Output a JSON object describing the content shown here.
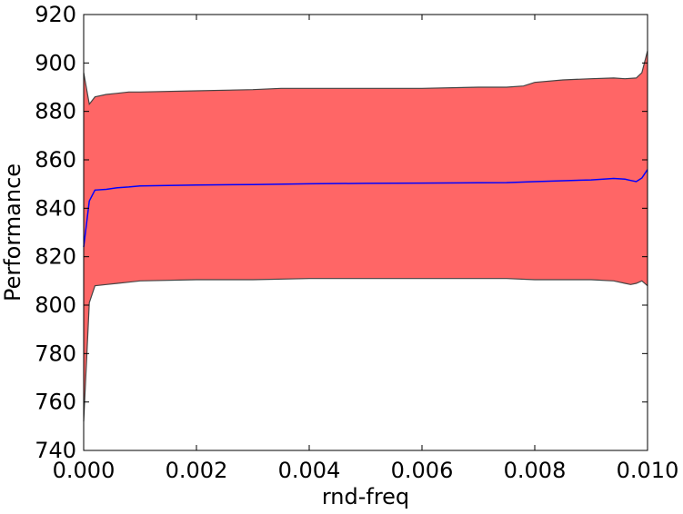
{
  "chart_data": {
    "type": "area",
    "title": "",
    "xlabel": "rnd-freq",
    "ylabel": "Performance",
    "xlim": [
      0.0,
      0.01
    ],
    "ylim": [
      740,
      920
    ],
    "xticks": [
      "0.000",
      "0.002",
      "0.004",
      "0.006",
      "0.008",
      "0.010"
    ],
    "yticks": [
      "740",
      "760",
      "780",
      "800",
      "820",
      "840",
      "860",
      "880",
      "900",
      "920"
    ],
    "grid": false,
    "legend": "none",
    "colors": {
      "band": "#ff6666",
      "band_edge": "#444444",
      "mean": "#0000ff"
    },
    "series": [
      {
        "role": "mean",
        "x": [
          0.0,
          0.0001,
          0.0002,
          0.0004,
          0.0006,
          0.0008,
          0.001,
          0.002,
          0.003,
          0.004,
          0.005,
          0.006,
          0.007,
          0.0075,
          0.008,
          0.009,
          0.0094,
          0.0096,
          0.0097,
          0.0098,
          0.0099,
          0.01
        ],
        "y": [
          824,
          843,
          847.5,
          847.8,
          848.5,
          848.8,
          849.2,
          849.6,
          849.8,
          850.1,
          850.3,
          850.4,
          850.5,
          850.6,
          851,
          851.7,
          852.3,
          852,
          851.5,
          851,
          852.5,
          856
        ]
      },
      {
        "role": "upper",
        "x": [
          0.0,
          0.0001,
          0.0002,
          0.0004,
          0.0006,
          0.0008,
          0.001,
          0.002,
          0.003,
          0.0035,
          0.004,
          0.005,
          0.006,
          0.007,
          0.0075,
          0.0078,
          0.008,
          0.0085,
          0.009,
          0.0094,
          0.0096,
          0.0098,
          0.0099,
          0.01
        ],
        "y": [
          896,
          883,
          886,
          887,
          887.5,
          888,
          888,
          888.5,
          889,
          889.5,
          889.5,
          889.5,
          889.5,
          890,
          890,
          890.5,
          892,
          893,
          893.5,
          893.8,
          893.5,
          893.8,
          896,
          905
        ]
      },
      {
        "role": "lower",
        "x": [
          0.0,
          0.0001,
          0.0002,
          0.0004,
          0.0006,
          0.0008,
          0.001,
          0.002,
          0.003,
          0.004,
          0.005,
          0.006,
          0.007,
          0.0075,
          0.008,
          0.009,
          0.0094,
          0.0096,
          0.0097,
          0.0098,
          0.0099,
          0.01
        ],
        "y": [
          752,
          801,
          808,
          808.5,
          809,
          809.5,
          810,
          810.5,
          810.5,
          811,
          811,
          811,
          811,
          811,
          810.5,
          810.5,
          810,
          809,
          808.5,
          809,
          810,
          808
        ]
      }
    ]
  }
}
